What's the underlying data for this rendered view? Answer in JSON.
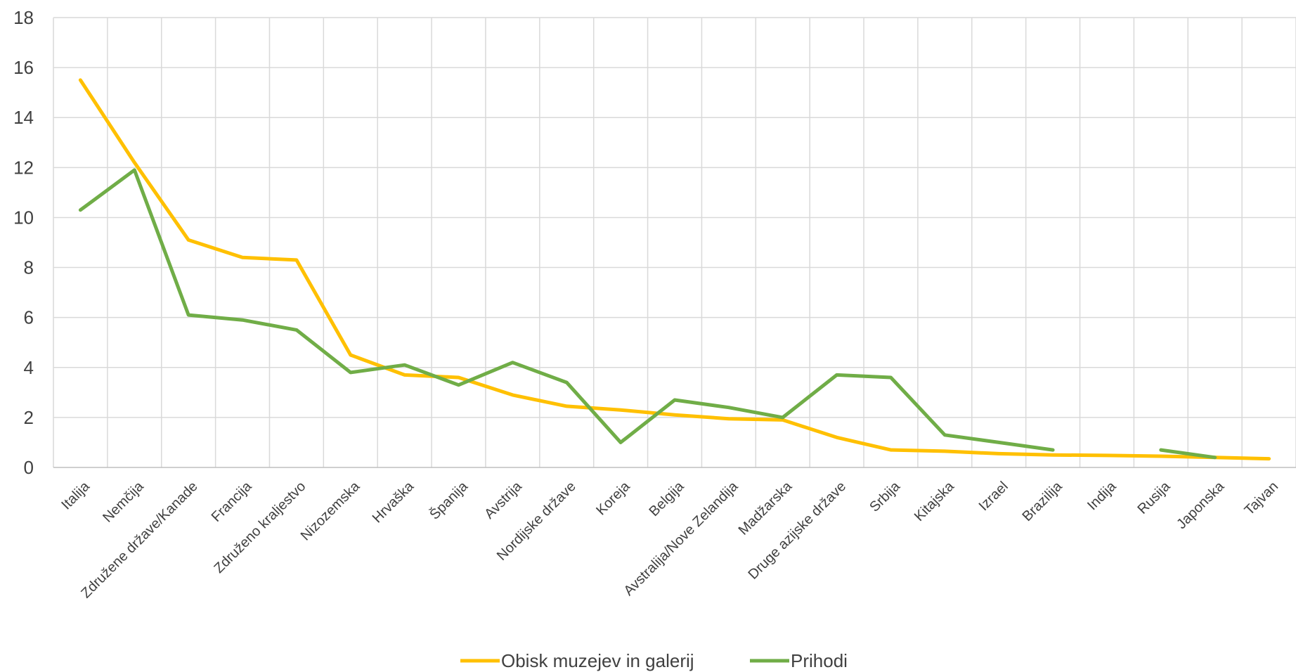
{
  "chart_data": {
    "type": "line",
    "categories": [
      "Italija",
      "Nemčija",
      "Združene države/Kanade",
      "Francija",
      "Združeno kraljestvo",
      "Nizozemska",
      "Hrvaška",
      "Španija",
      "Avstrija",
      "Nordijske države",
      "Koreja",
      "Belgija",
      "Avstralija/Nove Zelandija",
      "Madžarska",
      "Druge azijske države",
      "Srbija",
      "Kitajska",
      "Izrael",
      "Brazilija",
      "Indija",
      "Rusija",
      "Japonska",
      "Tajvan"
    ],
    "series": [
      {
        "name": "Obisk muzejev in galerij",
        "color": "#FFC000",
        "values": [
          15.5,
          12.2,
          9.1,
          8.4,
          8.3,
          4.5,
          3.7,
          3.6,
          2.9,
          2.45,
          2.3,
          2.1,
          1.95,
          1.9,
          1.2,
          0.7,
          0.65,
          0.55,
          0.5,
          0.48,
          0.45,
          0.4,
          0.35
        ]
      },
      {
        "name": "Prihodi",
        "color": "#70AD47",
        "values": [
          10.3,
          11.9,
          6.1,
          5.9,
          5.5,
          3.8,
          4.1,
          3.3,
          4.2,
          3.4,
          1.0,
          2.7,
          2.4,
          2.0,
          3.7,
          3.6,
          1.3,
          1.0,
          0.7,
          null,
          0.7,
          0.4,
          null
        ]
      }
    ],
    "ylim": [
      0,
      18
    ],
    "yticks": [
      0,
      2,
      4,
      6,
      8,
      10,
      12,
      14,
      16,
      18
    ],
    "yticks_labels": [
      "0",
      "2",
      "4",
      "6",
      "8",
      "10",
      "12",
      "14",
      "16",
      "18"
    ],
    "grid": true,
    "legend": "bottom-center",
    "title": "",
    "xlabel": "",
    "ylabel": ""
  }
}
